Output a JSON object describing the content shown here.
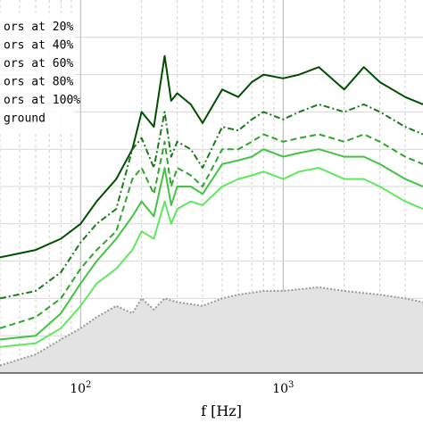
{
  "chart_data": {
    "type": "line",
    "xlabel": "f [Hz]",
    "ylabel": "",
    "x_scale": "log",
    "xlim": [
      40,
      4900
    ],
    "ylim": [
      0,
      1
    ],
    "grid": true,
    "legend_position": "top-left",
    "x_tick_labels": [
      "10^2",
      "10^3"
    ],
    "legend": [
      "ors at 20%",
      "ors at 40%",
      "ors at 60%",
      "ors at 80%",
      "ors at 100%",
      "ground"
    ],
    "series": [
      {
        "name": "ors at 100%",
        "color": "#004d00",
        "style": "solid",
        "x": [
          40,
          60,
          80,
          100,
          120,
          150,
          180,
          200,
          230,
          260,
          280,
          300,
          350,
          400,
          500,
          600,
          700,
          800,
          1000,
          1200,
          1500,
          2000,
          2500,
          3000,
          4000,
          4900
        ],
        "y": [
          0.31,
          0.33,
          0.36,
          0.4,
          0.46,
          0.52,
          0.6,
          0.7,
          0.66,
          0.85,
          0.73,
          0.75,
          0.72,
          0.67,
          0.76,
          0.74,
          0.78,
          0.8,
          0.79,
          0.8,
          0.82,
          0.76,
          0.82,
          0.78,
          0.74,
          0.72
        ]
      },
      {
        "name": "ors at 80%",
        "color": "#1a7a1a",
        "style": "dashdot",
        "x": [
          40,
          60,
          80,
          100,
          120,
          150,
          180,
          200,
          230,
          260,
          280,
          300,
          350,
          400,
          500,
          600,
          700,
          800,
          1000,
          1200,
          1500,
          2000,
          2500,
          3000,
          4000,
          4900
        ],
        "y": [
          0.2,
          0.22,
          0.27,
          0.35,
          0.4,
          0.44,
          0.6,
          0.63,
          0.55,
          0.7,
          0.58,
          0.62,
          0.6,
          0.55,
          0.66,
          0.65,
          0.68,
          0.7,
          0.68,
          0.7,
          0.72,
          0.7,
          0.72,
          0.7,
          0.66,
          0.64
        ]
      },
      {
        "name": "ors at 60%",
        "color": "#2fa52f",
        "style": "dashed",
        "x": [
          40,
          60,
          80,
          100,
          120,
          150,
          180,
          200,
          230,
          260,
          280,
          300,
          350,
          400,
          500,
          600,
          700,
          800,
          1000,
          1200,
          1500,
          2000,
          2500,
          3000,
          4000,
          4900
        ],
        "y": [
          0.12,
          0.15,
          0.2,
          0.28,
          0.33,
          0.38,
          0.52,
          0.55,
          0.48,
          0.62,
          0.5,
          0.55,
          0.53,
          0.5,
          0.6,
          0.6,
          0.62,
          0.64,
          0.62,
          0.63,
          0.64,
          0.62,
          0.64,
          0.62,
          0.58,
          0.56
        ]
      },
      {
        "name": "ors at 40%",
        "color": "#42c442",
        "style": "solid",
        "x": [
          40,
          60,
          80,
          100,
          120,
          150,
          180,
          200,
          230,
          260,
          280,
          300,
          350,
          400,
          500,
          600,
          700,
          800,
          1000,
          1200,
          1500,
          2000,
          2500,
          3000,
          4000,
          4900
        ],
        "y": [
          0.09,
          0.1,
          0.16,
          0.24,
          0.3,
          0.36,
          0.42,
          0.46,
          0.42,
          0.55,
          0.45,
          0.5,
          0.5,
          0.48,
          0.56,
          0.57,
          0.58,
          0.6,
          0.58,
          0.59,
          0.6,
          0.58,
          0.58,
          0.56,
          0.52,
          0.5
        ]
      },
      {
        "name": "ors at 20%",
        "color": "#5ee85e",
        "style": "solid",
        "x": [
          40,
          60,
          80,
          100,
          120,
          150,
          180,
          200,
          230,
          260,
          280,
          300,
          350,
          400,
          500,
          600,
          700,
          800,
          1000,
          1200,
          1500,
          2000,
          2500,
          3000,
          4000,
          4900
        ],
        "y": [
          0.07,
          0.08,
          0.12,
          0.18,
          0.24,
          0.28,
          0.33,
          0.38,
          0.36,
          0.46,
          0.4,
          0.44,
          0.46,
          0.45,
          0.5,
          0.52,
          0.53,
          0.54,
          0.52,
          0.54,
          0.55,
          0.52,
          0.52,
          0.5,
          0.46,
          0.44
        ]
      },
      {
        "name": "ground",
        "color": "#999999",
        "style": "dotted",
        "fill": "#e3e3e3",
        "x": [
          40,
          60,
          80,
          100,
          120,
          150,
          180,
          200,
          230,
          260,
          300,
          400,
          500,
          600,
          800,
          1000,
          1500,
          2000,
          3000,
          4000,
          4900
        ],
        "y": [
          0.02,
          0.05,
          0.09,
          0.12,
          0.15,
          0.18,
          0.16,
          0.2,
          0.17,
          0.2,
          0.19,
          0.18,
          0.2,
          0.21,
          0.22,
          0.22,
          0.23,
          0.22,
          0.21,
          0.2,
          0.19
        ]
      }
    ]
  }
}
